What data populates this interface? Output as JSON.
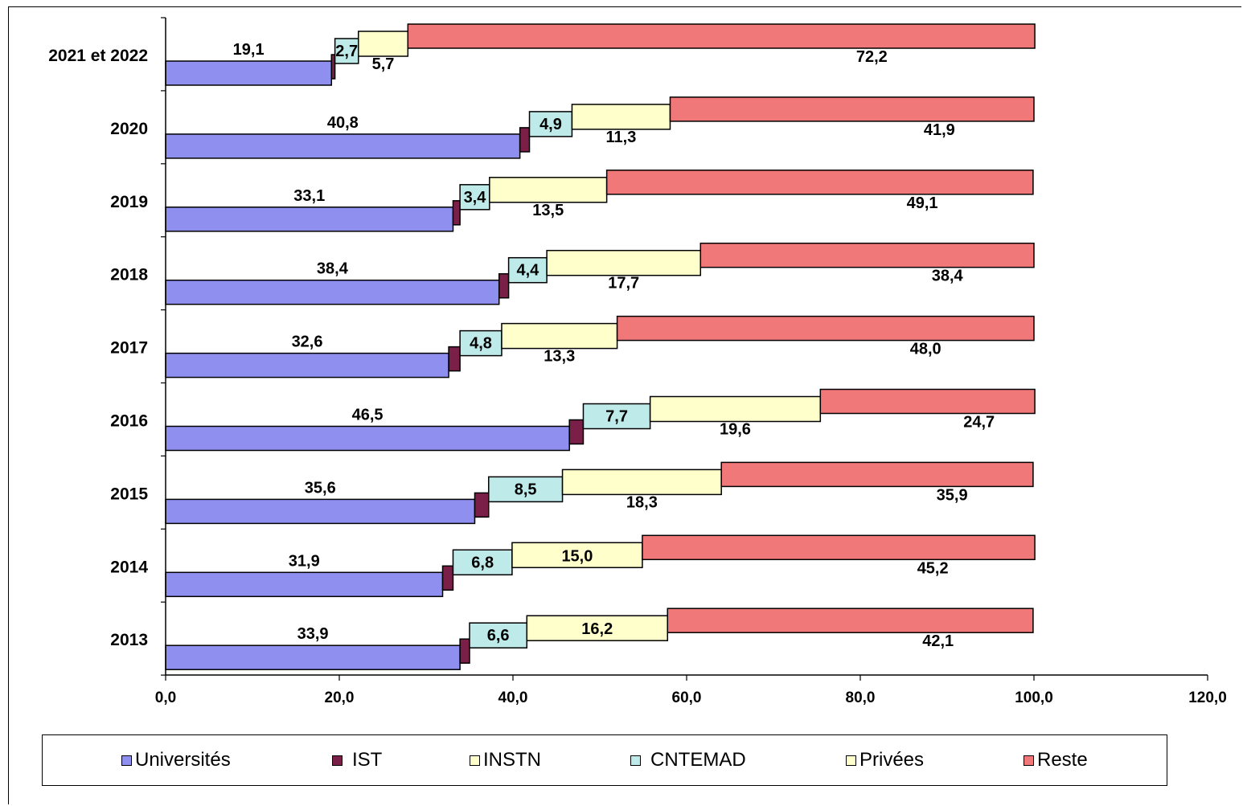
{
  "chart_data": {
    "type": "bar",
    "orientation": "horizontal",
    "stacked": true,
    "categories": [
      "2021 et 2022",
      "2020",
      "2019",
      "2018",
      "2017",
      "2016",
      "2015",
      "2014",
      "2013"
    ],
    "series": [
      {
        "name": "Universités",
        "color": "#8f8ff0",
        "values": [
          19.1,
          40.8,
          33.1,
          38.4,
          32.6,
          46.5,
          35.6,
          31.9,
          33.9
        ],
        "labels": [
          "19,1",
          "40,8",
          "33,1",
          "38,4",
          "32,6",
          "46,5",
          "35,6",
          "31,9",
          "33,9"
        ]
      },
      {
        "name": "IST",
        "color": "#7a2048",
        "values": [
          0.4,
          1.1,
          0.8,
          1.1,
          1.3,
          1.6,
          1.6,
          1.2,
          1.1
        ],
        "labels": [
          "",
          "",
          "",
          "",
          "",
          "",
          "",
          "",
          ""
        ]
      },
      {
        "name": "INSTN",
        "color": "#ffffcc",
        "values": [
          0,
          0,
          0,
          0,
          0,
          0,
          0,
          0,
          0
        ],
        "labels": [
          "",
          "",
          "",
          "",
          "",
          "",
          "",
          "",
          ""
        ]
      },
      {
        "name": "CNTEMAD",
        "color": "#bfeaea",
        "values": [
          2.7,
          4.9,
          3.4,
          4.4,
          4.8,
          7.7,
          8.5,
          6.8,
          6.6
        ],
        "labels": [
          "2,7",
          "4,9",
          "3,4",
          "4,4",
          "4,8",
          "7,7",
          "8,5",
          "6,8",
          "6,6"
        ]
      },
      {
        "name": "Privées",
        "color": "#ffffcc",
        "values": [
          5.7,
          11.3,
          13.5,
          17.7,
          13.3,
          19.6,
          18.3,
          15.0,
          16.2
        ],
        "labels": [
          "5,7",
          "11,3",
          "13,5",
          "17,7",
          "13,3",
          "19,6",
          "18,3",
          "15,0",
          "16,2"
        ]
      },
      {
        "name": "Reste",
        "color": "#f07878",
        "values": [
          72.2,
          41.9,
          49.1,
          38.4,
          48.0,
          24.7,
          35.9,
          45.2,
          42.1
        ],
        "labels": [
          "72,2",
          "41,9",
          "49,1",
          "38,4",
          "48,0",
          "24,7",
          "35,9",
          "45,2",
          "42,1"
        ]
      }
    ],
    "xlim": [
      0,
      120
    ],
    "xticks": [
      "0,0",
      "20,0",
      "40,0",
      "60,0",
      "80,0",
      "100,0",
      "120,0"
    ],
    "legend_position": "bottom",
    "grid": false
  },
  "legend": {
    "items": [
      {
        "label": "Universités",
        "color": "#8f8ff0"
      },
      {
        "label": "IST",
        "color": "#7a2048"
      },
      {
        "label": "INSTN",
        "color": "#ffffcc"
      },
      {
        "label": "CNTEMAD",
        "color": "#bfeaea"
      },
      {
        "label": "Privées",
        "color": "#ffffcc"
      },
      {
        "label": "Reste",
        "color": "#f07878"
      }
    ]
  }
}
